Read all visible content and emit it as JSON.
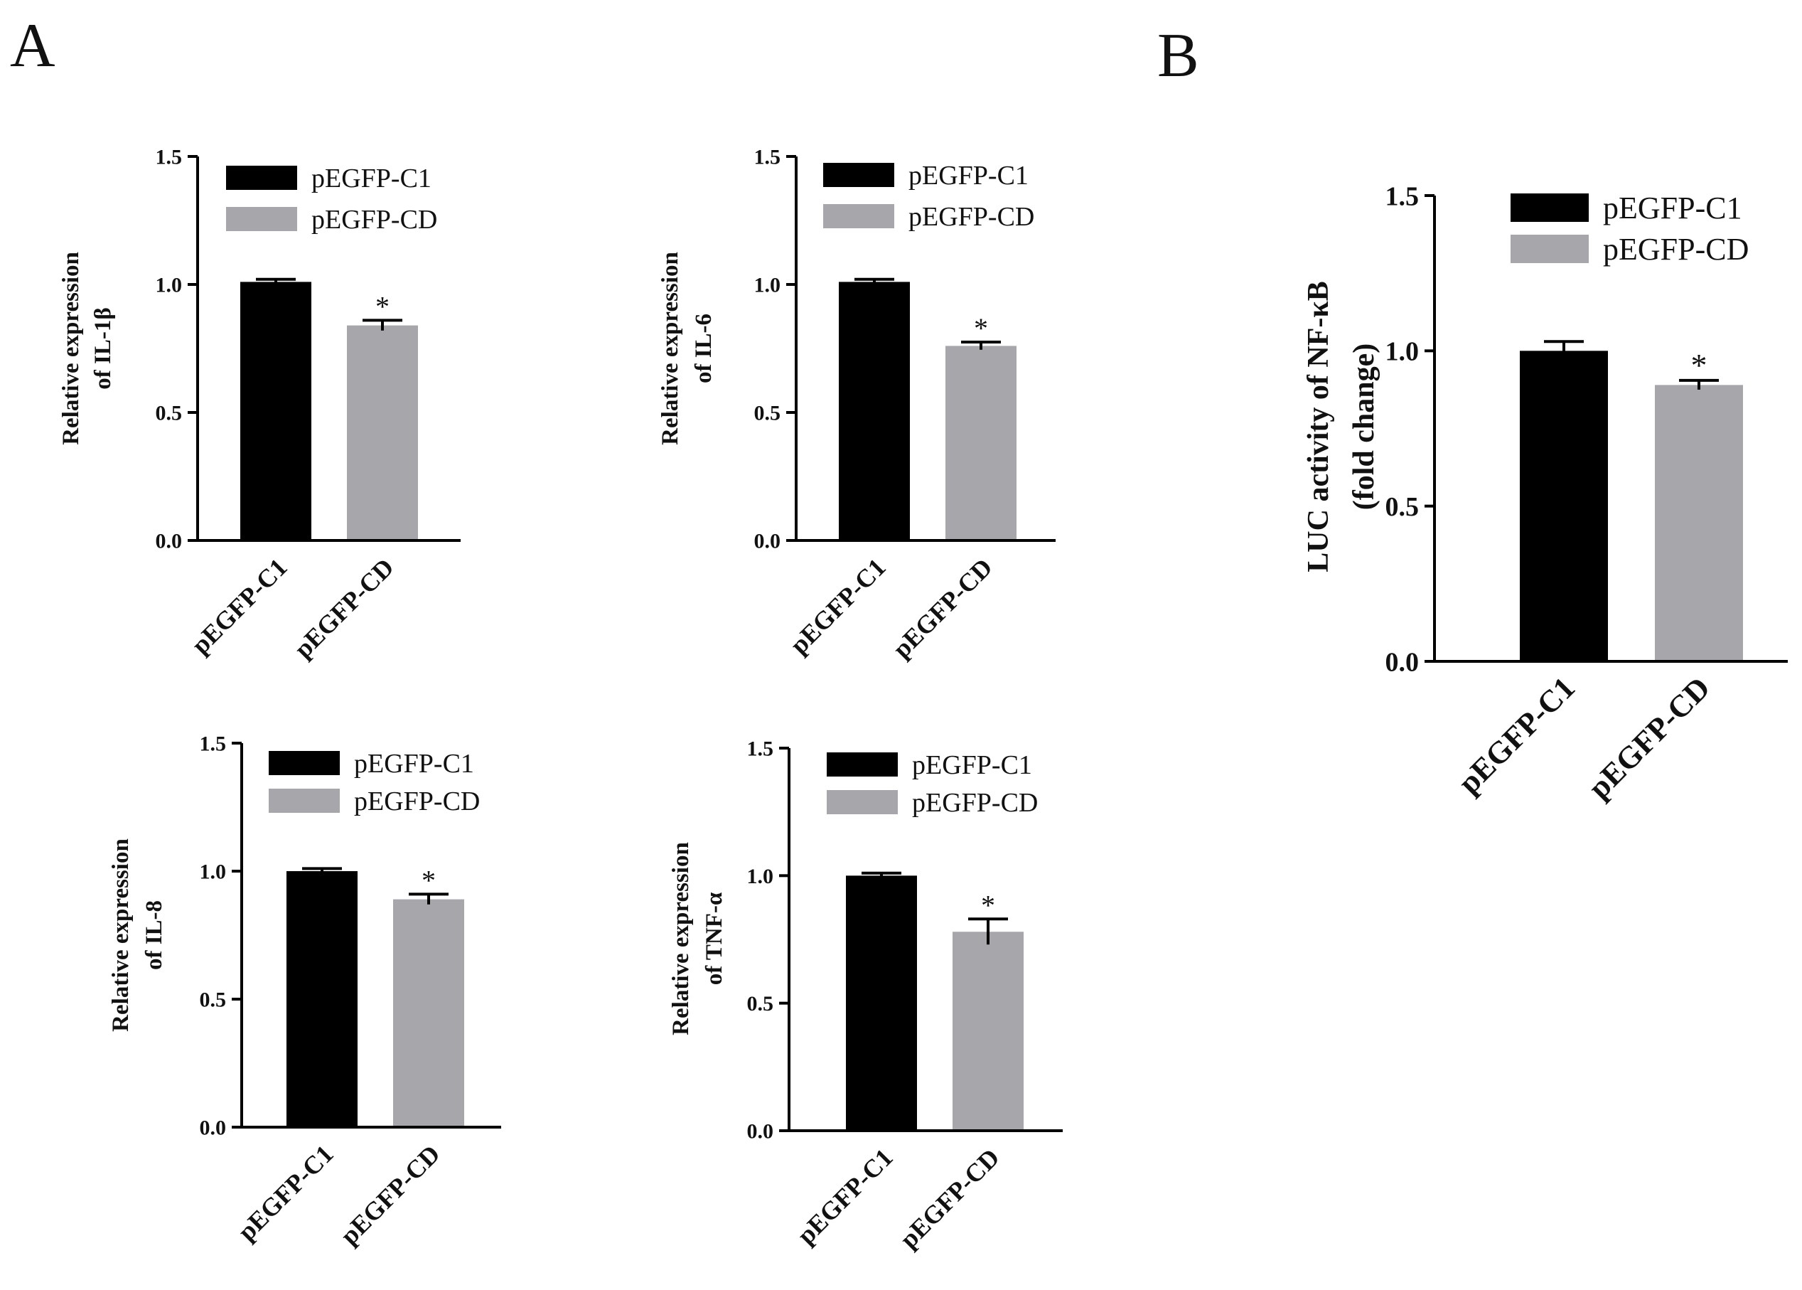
{
  "panels": {
    "a": "A",
    "b": "B"
  },
  "colors": {
    "black_bar": "#000000",
    "gray_bar": "#a7a6ab",
    "axis": "#000000"
  },
  "chart_data": [
    {
      "type": "bar",
      "id": "il1b",
      "title": "",
      "ylabel_lines": [
        "Relative expression",
        "of IL-1β"
      ],
      "categories": [
        "pEGFP-C1",
        "pEGFP-CD"
      ],
      "values": [
        1.01,
        0.84
      ],
      "errors": [
        0.01,
        0.02
      ],
      "significance": [
        "",
        "*"
      ],
      "yticks": [
        "0.0",
        "0.5",
        "1.0",
        "1.5"
      ],
      "ylim": [
        0,
        1.5
      ],
      "legend": [
        {
          "label": "pEGFP-C1"
        },
        {
          "label": "pEGFP-CD"
        }
      ]
    },
    {
      "type": "bar",
      "id": "il6",
      "title": "",
      "ylabel_lines": [
        "Relative expression",
        "of IL-6"
      ],
      "categories": [
        "pEGFP-C1",
        "pEGFP-CD"
      ],
      "values": [
        1.01,
        0.76
      ],
      "errors": [
        0.01,
        0.015
      ],
      "significance": [
        "",
        "*"
      ],
      "yticks": [
        "0.0",
        "0.5",
        "1.0",
        "1.5"
      ],
      "ylim": [
        0,
        1.5
      ],
      "legend": [
        {
          "label": "pEGFP-C1"
        },
        {
          "label": "pEGFP-CD"
        }
      ]
    },
    {
      "type": "bar",
      "id": "il8",
      "title": "",
      "ylabel_lines": [
        "Relative expression",
        "of IL-8"
      ],
      "categories": [
        "pEGFP-C1",
        "pEGFP-CD"
      ],
      "values": [
        1.0,
        0.89
      ],
      "errors": [
        0.01,
        0.02
      ],
      "significance": [
        "",
        "*"
      ],
      "yticks": [
        "0.0",
        "0.5",
        "1.0",
        "1.5"
      ],
      "ylim": [
        0,
        1.5
      ],
      "legend": [
        {
          "label": "pEGFP-C1"
        },
        {
          "label": "pEGFP-CD"
        }
      ]
    },
    {
      "type": "bar",
      "id": "tnfa",
      "title": "",
      "ylabel_lines": [
        "Relative expression",
        "of TNF-α"
      ],
      "categories": [
        "pEGFP-C1",
        "pEGFP-CD"
      ],
      "values": [
        1.0,
        0.78
      ],
      "errors": [
        0.01,
        0.05
      ],
      "significance": [
        "",
        "*"
      ],
      "yticks": [
        "0.0",
        "0.5",
        "1.0",
        "1.5"
      ],
      "ylim": [
        0,
        1.5
      ],
      "legend": [
        {
          "label": "pEGFP-C1"
        },
        {
          "label": "pEGFP-CD"
        }
      ]
    },
    {
      "type": "bar",
      "id": "nfkb",
      "title": "",
      "ylabel_lines": [
        "LUC activity of NF-κB",
        "(fold change)"
      ],
      "categories": [
        "pEGFP-C1",
        "pEGFP-CD"
      ],
      "values": [
        1.0,
        0.89
      ],
      "errors": [
        0.03,
        0.015
      ],
      "significance": [
        "",
        "*"
      ],
      "yticks": [
        "0.0",
        "0.5",
        "1.0",
        "1.5"
      ],
      "ylim": [
        0,
        1.5
      ],
      "legend": [
        {
          "label": "pEGFP-C1"
        },
        {
          "label": "pEGFP-CD"
        }
      ]
    }
  ]
}
